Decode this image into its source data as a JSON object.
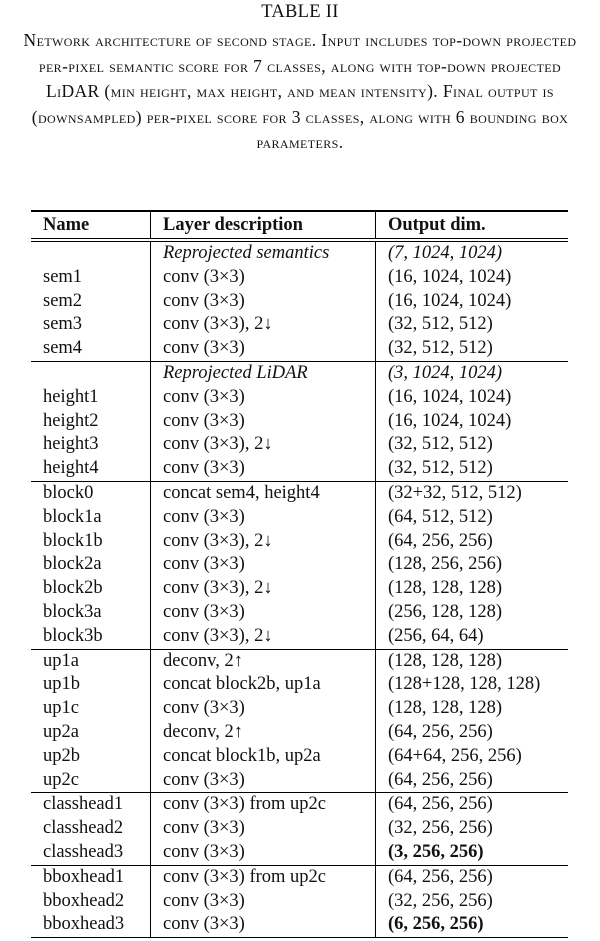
{
  "table_label": "TABLE II",
  "caption": "Network architecture of second stage. Input includes top-down projected per-pixel semantic score for 7 classes, along with top-down projected LiDAR (min height, max height, and mean intensity). Final output is (downsampled) per-pixel score for 3 classes, along with 6 bounding box parameters.",
  "columns": [
    "Name",
    "Layer description",
    "Output dim."
  ],
  "groups": [
    {
      "rows": [
        {
          "name": "",
          "desc": "Reprojected semantics",
          "dim": "(7, 1024, 1024)",
          "style": "italic"
        },
        {
          "name": "sem1",
          "desc": "conv (3×3)",
          "dim": "(16, 1024, 1024)"
        },
        {
          "name": "sem2",
          "desc": "conv (3×3)",
          "dim": "(16, 1024, 1024)"
        },
        {
          "name": "sem3",
          "desc": "conv (3×3), 2↓",
          "dim": "(32, 512, 512)"
        },
        {
          "name": "sem4",
          "desc": "conv (3×3)",
          "dim": "(32, 512, 512)"
        }
      ]
    },
    {
      "rows": [
        {
          "name": "",
          "desc": "Reprojected LiDAR",
          "dim": "(3, 1024, 1024)",
          "style": "italic"
        },
        {
          "name": "height1",
          "desc": "conv (3×3)",
          "dim": "(16, 1024, 1024)"
        },
        {
          "name": "height2",
          "desc": "conv (3×3)",
          "dim": "(16, 1024, 1024)"
        },
        {
          "name": "height3",
          "desc": "conv (3×3), 2↓",
          "dim": "(32, 512, 512)"
        },
        {
          "name": "height4",
          "desc": "conv (3×3)",
          "dim": "(32, 512, 512)"
        }
      ]
    },
    {
      "rows": [
        {
          "name": "block0",
          "desc": "concat sem4, height4",
          "dim": "(32+32, 512, 512)"
        },
        {
          "name": "block1a",
          "desc": "conv (3×3)",
          "dim": "(64, 512, 512)"
        },
        {
          "name": "block1b",
          "desc": "conv (3×3), 2↓",
          "dim": "(64, 256, 256)"
        },
        {
          "name": "block2a",
          "desc": "conv (3×3)",
          "dim": "(128, 256, 256)"
        },
        {
          "name": "block2b",
          "desc": "conv (3×3), 2↓",
          "dim": "(128, 128, 128)"
        },
        {
          "name": "block3a",
          "desc": "conv (3×3)",
          "dim": "(256, 128, 128)"
        },
        {
          "name": "block3b",
          "desc": "conv (3×3), 2↓",
          "dim": "(256, 64, 64)"
        }
      ]
    },
    {
      "rows": [
        {
          "name": "up1a",
          "desc": "deconv, 2↑",
          "dim": "(128, 128, 128)"
        },
        {
          "name": "up1b",
          "desc": "concat block2b, up1a",
          "dim": "(128+128, 128, 128)"
        },
        {
          "name": "up1c",
          "desc": "conv (3×3)",
          "dim": "(128, 128, 128)"
        },
        {
          "name": "up2a",
          "desc": "deconv, 2↑",
          "dim": "(64, 256, 256)"
        },
        {
          "name": "up2b",
          "desc": "concat block1b, up2a",
          "dim": "(64+64, 256, 256)"
        },
        {
          "name": "up2c",
          "desc": "conv (3×3)",
          "dim": "(64, 256, 256)"
        }
      ]
    },
    {
      "rows": [
        {
          "name": "classhead1",
          "desc": "conv (3×3) from up2c",
          "dim": "(64, 256, 256)"
        },
        {
          "name": "classhead2",
          "desc": "conv (3×3)",
          "dim": "(32, 256, 256)"
        },
        {
          "name": "classhead3",
          "desc": "conv (3×3)",
          "dim": "(3, 256, 256)",
          "dim_style": "bold"
        }
      ]
    },
    {
      "rows": [
        {
          "name": "bboxhead1",
          "desc": "conv (3×3) from up2c",
          "dim": "(64, 256, 256)"
        },
        {
          "name": "bboxhead2",
          "desc": "conv (3×3)",
          "dim": "(32, 256, 256)"
        },
        {
          "name": "bboxhead3",
          "desc": "conv (3×3)",
          "dim": "(6, 256, 256)",
          "dim_style": "bold"
        }
      ]
    }
  ]
}
